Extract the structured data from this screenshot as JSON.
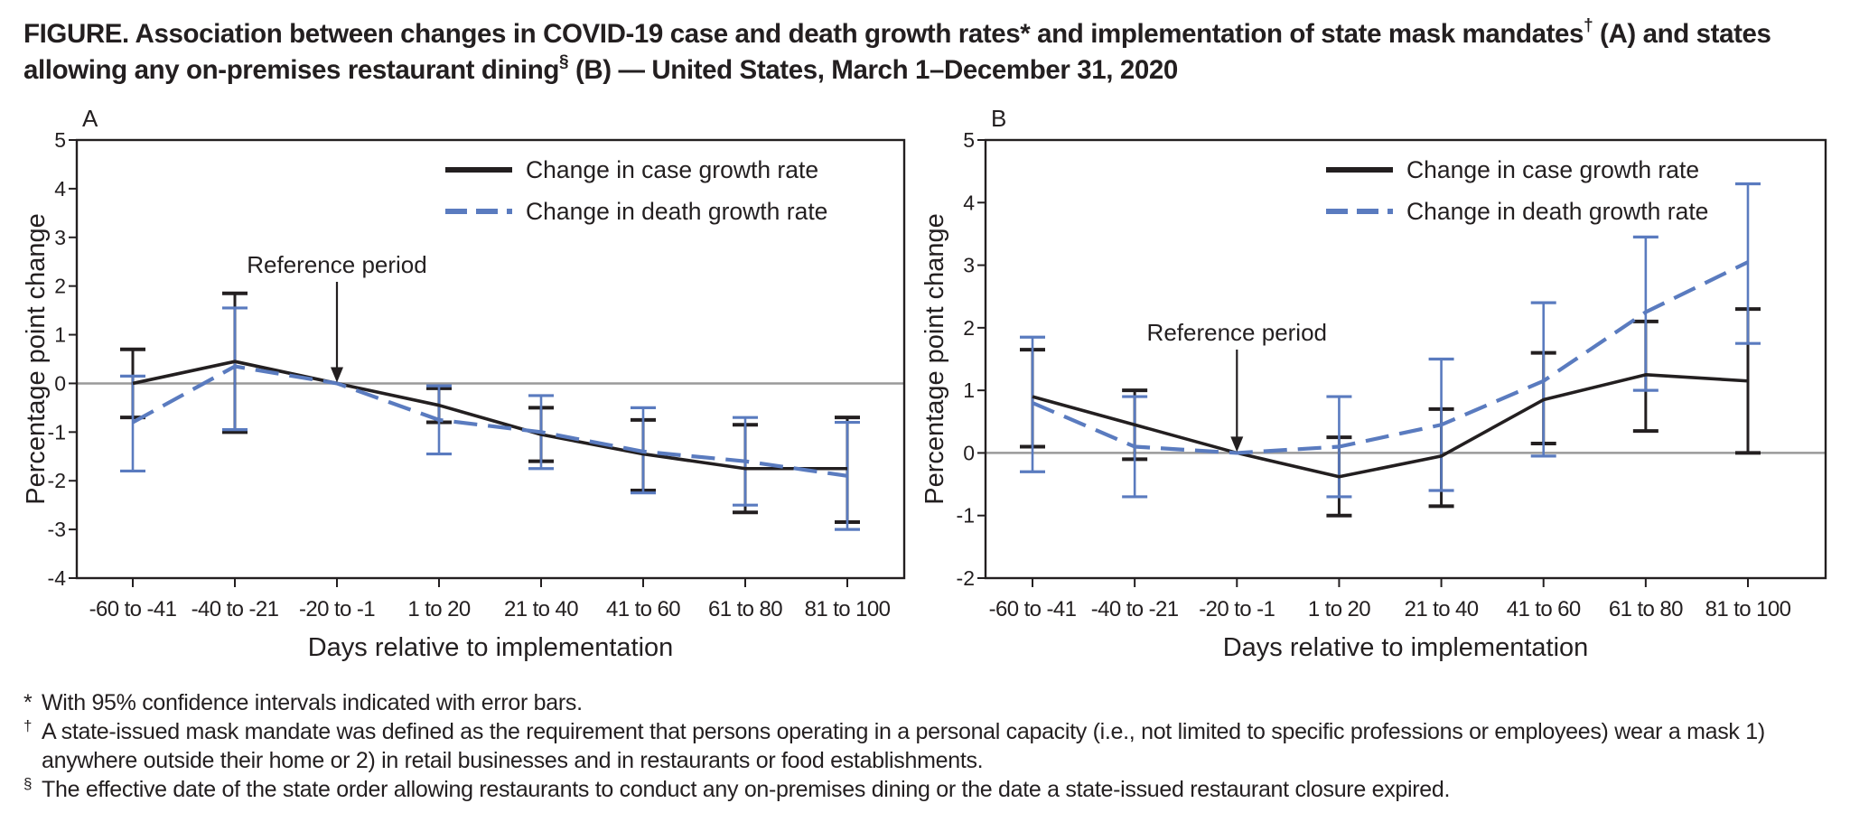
{
  "figure": {
    "title_main": "FIGURE. Association between changes in COVID-19 case and death growth rates* and implementation of state mask mandates",
    "title_dagger": "†",
    "title_mid": " (A) and states allowing any on-premises restaurant dining",
    "title_section": "§",
    "title_end": " (B) — United States, March 1–December 31, 2020"
  },
  "colors": {
    "case_line": "#231f20",
    "death_line": "#5a7bbf",
    "reference_line": "#9a9a9a",
    "axis": "#231f20"
  },
  "chart_data": [
    {
      "type": "line",
      "panel_label": "A",
      "categories": [
        "-60 to -41",
        "-40 to -21",
        "-20 to -1",
        "1 to 20",
        "21 to 40",
        "41 to 60",
        "61 to 80",
        "81 to 100"
      ],
      "xlabel": "Days relative to implementation",
      "ylabel": "Percentage point change",
      "ylim": [
        -4,
        5
      ],
      "yticks": [
        "5",
        "4",
        "3",
        "2",
        "1",
        "0",
        "-1",
        "-2",
        "-3",
        "-4"
      ],
      "annotation": "Reference period",
      "annotation_category": "-20 to -1",
      "legend_position": "top-right",
      "series": [
        {
          "name": "Change in case growth rate",
          "style": "solid",
          "values": [
            0.0,
            0.45,
            0.0,
            -0.45,
            -1.05,
            -1.45,
            -1.75,
            -1.75
          ],
          "ci_low": [
            -0.7,
            -1.0,
            0.0,
            -0.8,
            -1.6,
            -2.2,
            -2.65,
            -2.85
          ],
          "ci_high": [
            0.7,
            1.85,
            0.0,
            -0.1,
            -0.5,
            -0.75,
            -0.85,
            -0.7
          ]
        },
        {
          "name": "Change in death growth rate",
          "style": "dashed",
          "values": [
            -0.8,
            0.35,
            0.0,
            -0.75,
            -1.0,
            -1.4,
            -1.6,
            -1.9
          ],
          "ci_low": [
            -1.8,
            -0.95,
            0.0,
            -1.45,
            -1.75,
            -2.25,
            -2.5,
            -3.0
          ],
          "ci_high": [
            0.15,
            1.55,
            0.0,
            -0.05,
            -0.25,
            -0.5,
            -0.7,
            -0.8
          ]
        }
      ]
    },
    {
      "type": "line",
      "panel_label": "B",
      "categories": [
        "-60 to -41",
        "-40 to -21",
        "-20 to -1",
        "1 to 20",
        "21 to 40",
        "41 to 60",
        "61 to 80",
        "81 to 100"
      ],
      "xlabel": "Days relative to implementation",
      "ylabel": "Percentage point change",
      "ylim": [
        -2,
        5
      ],
      "yticks": [
        "5",
        "4",
        "3",
        "2",
        "1",
        "0",
        "-1",
        "-2"
      ],
      "annotation": "Reference period",
      "annotation_category": "-20 to -1",
      "legend_position": "top-right",
      "series": [
        {
          "name": "Change in case growth rate",
          "style": "solid",
          "values": [
            0.9,
            0.45,
            0.0,
            -0.38,
            -0.05,
            0.85,
            1.25,
            1.15
          ],
          "ci_low": [
            0.1,
            -0.1,
            0.0,
            -1.0,
            -0.85,
            0.15,
            0.35,
            0.0
          ],
          "ci_high": [
            1.65,
            1.0,
            0.0,
            0.25,
            0.7,
            1.6,
            2.1,
            2.3
          ]
        },
        {
          "name": "Change in death growth rate",
          "style": "dashed",
          "values": [
            0.8,
            0.1,
            0.0,
            0.1,
            0.45,
            1.15,
            2.25,
            3.05
          ],
          "ci_low": [
            -0.3,
            -0.7,
            0.0,
            -0.7,
            -0.6,
            -0.05,
            1.0,
            1.75
          ],
          "ci_high": [
            1.85,
            0.9,
            0.0,
            0.9,
            1.5,
            2.4,
            3.45,
            4.3
          ]
        }
      ]
    }
  ],
  "footnotes": [
    {
      "mark": "*",
      "text": "With 95% confidence intervals indicated with error bars."
    },
    {
      "mark": "†",
      "text": "A state-issued mask mandate was defined as the requirement that persons operating in a personal capacity (i.e., not limited to specific professions or employees) wear a mask 1) anywhere outside their home or 2) in retail businesses and in restaurants or food establishments."
    },
    {
      "mark": "§",
      "text": "The effective date of the state order allowing restaurants to conduct any on-premises dining or the date a state-issued restaurant closure expired."
    }
  ]
}
